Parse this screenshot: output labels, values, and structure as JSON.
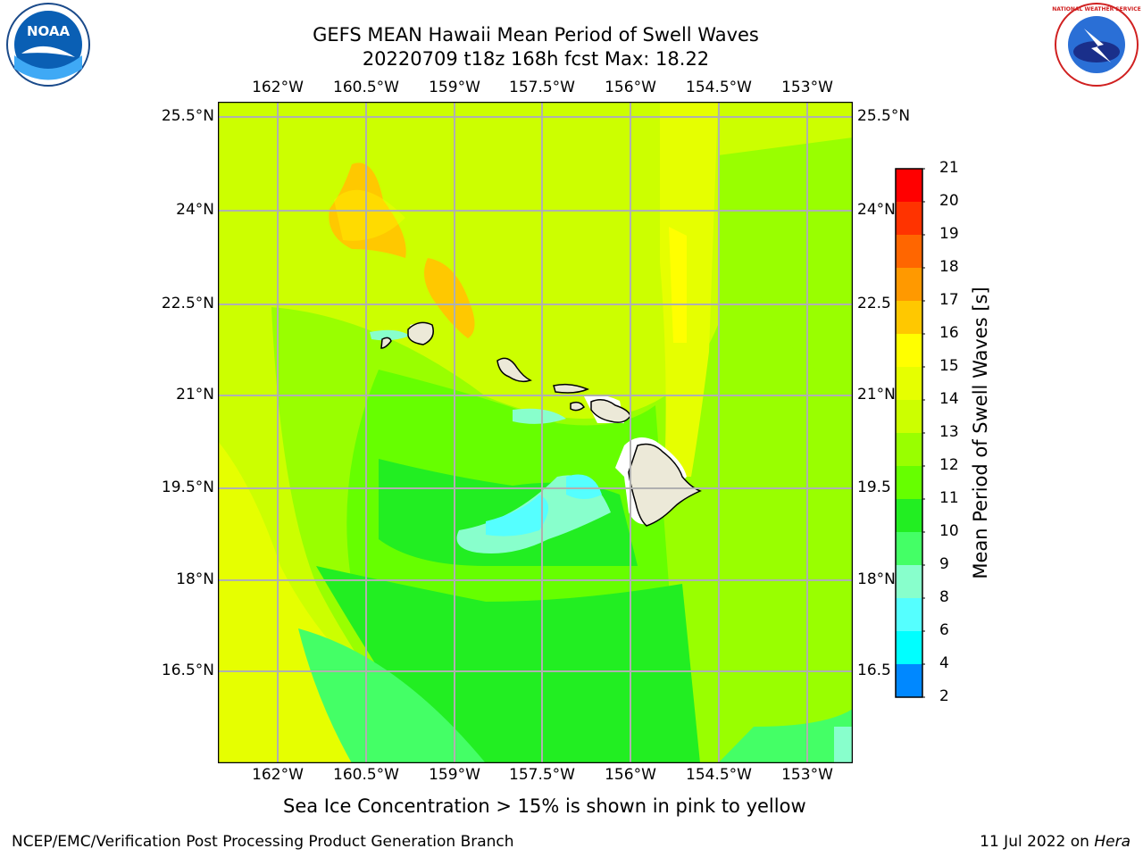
{
  "title": {
    "line1": "GEFS MEAN Hawaii Mean Period of Swell Waves",
    "line2": "20220709 t18z 168h fcst   Max: 18.22"
  },
  "map": {
    "lon_labels": [
      "162°W",
      "160.5°W",
      "159°W",
      "157.5°W",
      "156°W",
      "154.5°W",
      "153°W"
    ],
    "lat_labels": [
      "25.5°N",
      "24°N",
      "22.5°N",
      "21°N",
      "19.5°N",
      "18°N",
      "16.5°N"
    ],
    "lat_labels_right": [
      "25.5°N",
      "24°N",
      "22.5",
      "21°N",
      "19.5",
      "18°N",
      "16.5"
    ],
    "lon_range": [
      -163,
      -152.2
    ],
    "lat_range": [
      15.2,
      25.75
    ]
  },
  "colorbar": {
    "label": "Mean Period of Swell Waves [s]",
    "ticks": [
      "21",
      "20",
      "19",
      "18",
      "17",
      "16",
      "15",
      "14",
      "13",
      "12",
      "11",
      "10",
      "9",
      "8",
      "6",
      "4",
      "2"
    ],
    "colors": [
      "#ff0000",
      "#ff3300",
      "#ff6600",
      "#ff9900",
      "#ffc800",
      "#ffff00",
      "#e6ff00",
      "#ccff00",
      "#99ff00",
      "#66ff00",
      "#22ee22",
      "#44ff66",
      "#88ffcc",
      "#55ffff",
      "#00ffff",
      "#0088ff",
      "#0000ff"
    ]
  },
  "caption": "Sea Ice Concentration > 15% is shown in pink to yellow",
  "footer": {
    "left": "NCEP/EMC/Verification Post Processing Product Generation Branch",
    "right_prefix": "11 Jul 2022 on ",
    "right_host": "Hera"
  },
  "logos": {
    "left_text": "NOAA",
    "right_text": "NATIONAL WEATHER SERVICE"
  }
}
